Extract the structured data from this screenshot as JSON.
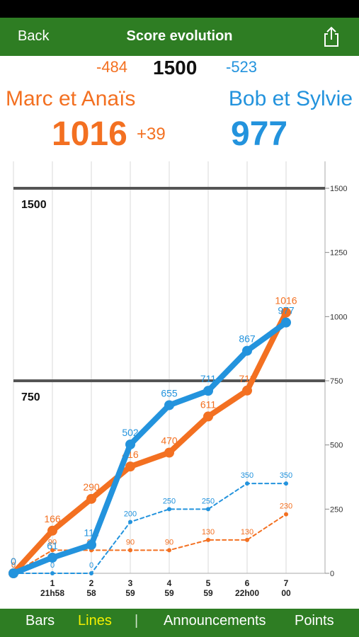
{
  "nav": {
    "back_label": "Back",
    "title": "Score evolution"
  },
  "header": {
    "target": "1500",
    "left_diff": "-484",
    "right_diff": "-523",
    "left_team": {
      "name": "Marc et Anaïs",
      "score": "1016",
      "delta": "+39"
    },
    "right_team": {
      "name": "Bob et Sylvie",
      "score": "977"
    }
  },
  "tabs": [
    {
      "label": "Bars",
      "active": false
    },
    {
      "label": "Lines",
      "active": true
    },
    {
      "label": "|",
      "active": false
    },
    {
      "label": "Announcements",
      "active": false
    },
    {
      "label": "Points",
      "active": false
    }
  ],
  "colors": {
    "orange": "#f37021",
    "blue": "#2393dd",
    "green": "#2e7d23"
  },
  "chart_data": {
    "type": "line",
    "x": [
      0,
      1,
      2,
      3,
      4,
      5,
      6,
      7
    ],
    "x_tick_labels": [
      "",
      "1",
      "2",
      "3",
      "4",
      "5",
      "6",
      "7"
    ],
    "x_tick_sublabels": [
      "",
      "21h58",
      "58",
      "59",
      "59",
      "59",
      "22h00",
      "00"
    ],
    "ylim": [
      0,
      1500
    ],
    "y_ticks": [
      0,
      250,
      500,
      750,
      1000,
      1250,
      1500
    ],
    "reference_lines": [
      {
        "value": 750,
        "label": "750"
      },
      {
        "value": 1500,
        "label": "1500"
      }
    ],
    "grid": true,
    "series": [
      {
        "team": "Marc et Anaïs",
        "color": "#f37021",
        "style": "solid",
        "values": [
          0,
          166,
          290,
          416,
          470,
          611,
          712,
          1016
        ]
      },
      {
        "team": "Bob et Sylvie",
        "color": "#2393dd",
        "style": "solid",
        "values": [
          0,
          61,
          111,
          502,
          655,
          711,
          867,
          977
        ]
      },
      {
        "team": "Bob et Sylvie",
        "color": "#2393dd",
        "style": "dashed",
        "values": [
          0,
          0,
          0,
          200,
          250,
          250,
          350,
          350
        ]
      },
      {
        "team": "Marc et Anaïs",
        "color": "#f37021",
        "style": "dashed",
        "values": [
          0,
          90,
          90,
          90,
          90,
          130,
          130,
          230
        ]
      }
    ]
  }
}
